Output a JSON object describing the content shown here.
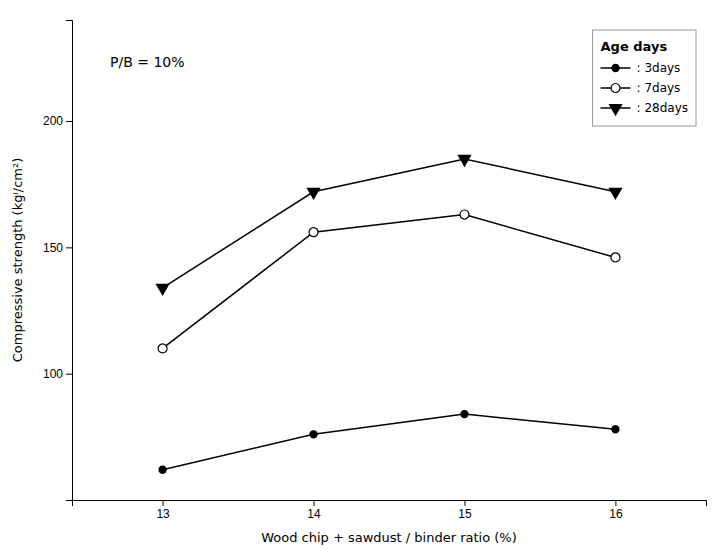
{
  "chart_data": {
    "type": "line",
    "x": [
      13,
      14,
      15,
      16
    ],
    "series": [
      {
        "name": ": 3days",
        "color": "black",
        "marker": "circle",
        "values": [
          62,
          76,
          84,
          78
        ]
      },
      {
        "name": ": 7days",
        "color": "black",
        "marker": "open-circle",
        "values": [
          110,
          156,
          163,
          146
        ]
      },
      {
        "name": ": 28days",
        "color": "black",
        "marker": "triangle-down",
        "values": [
          134,
          172,
          185,
          172
        ]
      }
    ],
    "xlabel": "Wood chip + sawdust / binder ratio (%)",
    "ylabel": "Compressive strength (kgⁱ/cm²)",
    "annotation": "P/B = 10%",
    "legend_title": "Age days",
    "xlim": [
      12.4,
      16.6
    ],
    "ylim": [
      50,
      240
    ],
    "xticks": [
      13,
      14,
      15,
      16
    ],
    "yticks": [
      100,
      150,
      200
    ],
    "grid": false,
    "legend": "upper right"
  }
}
